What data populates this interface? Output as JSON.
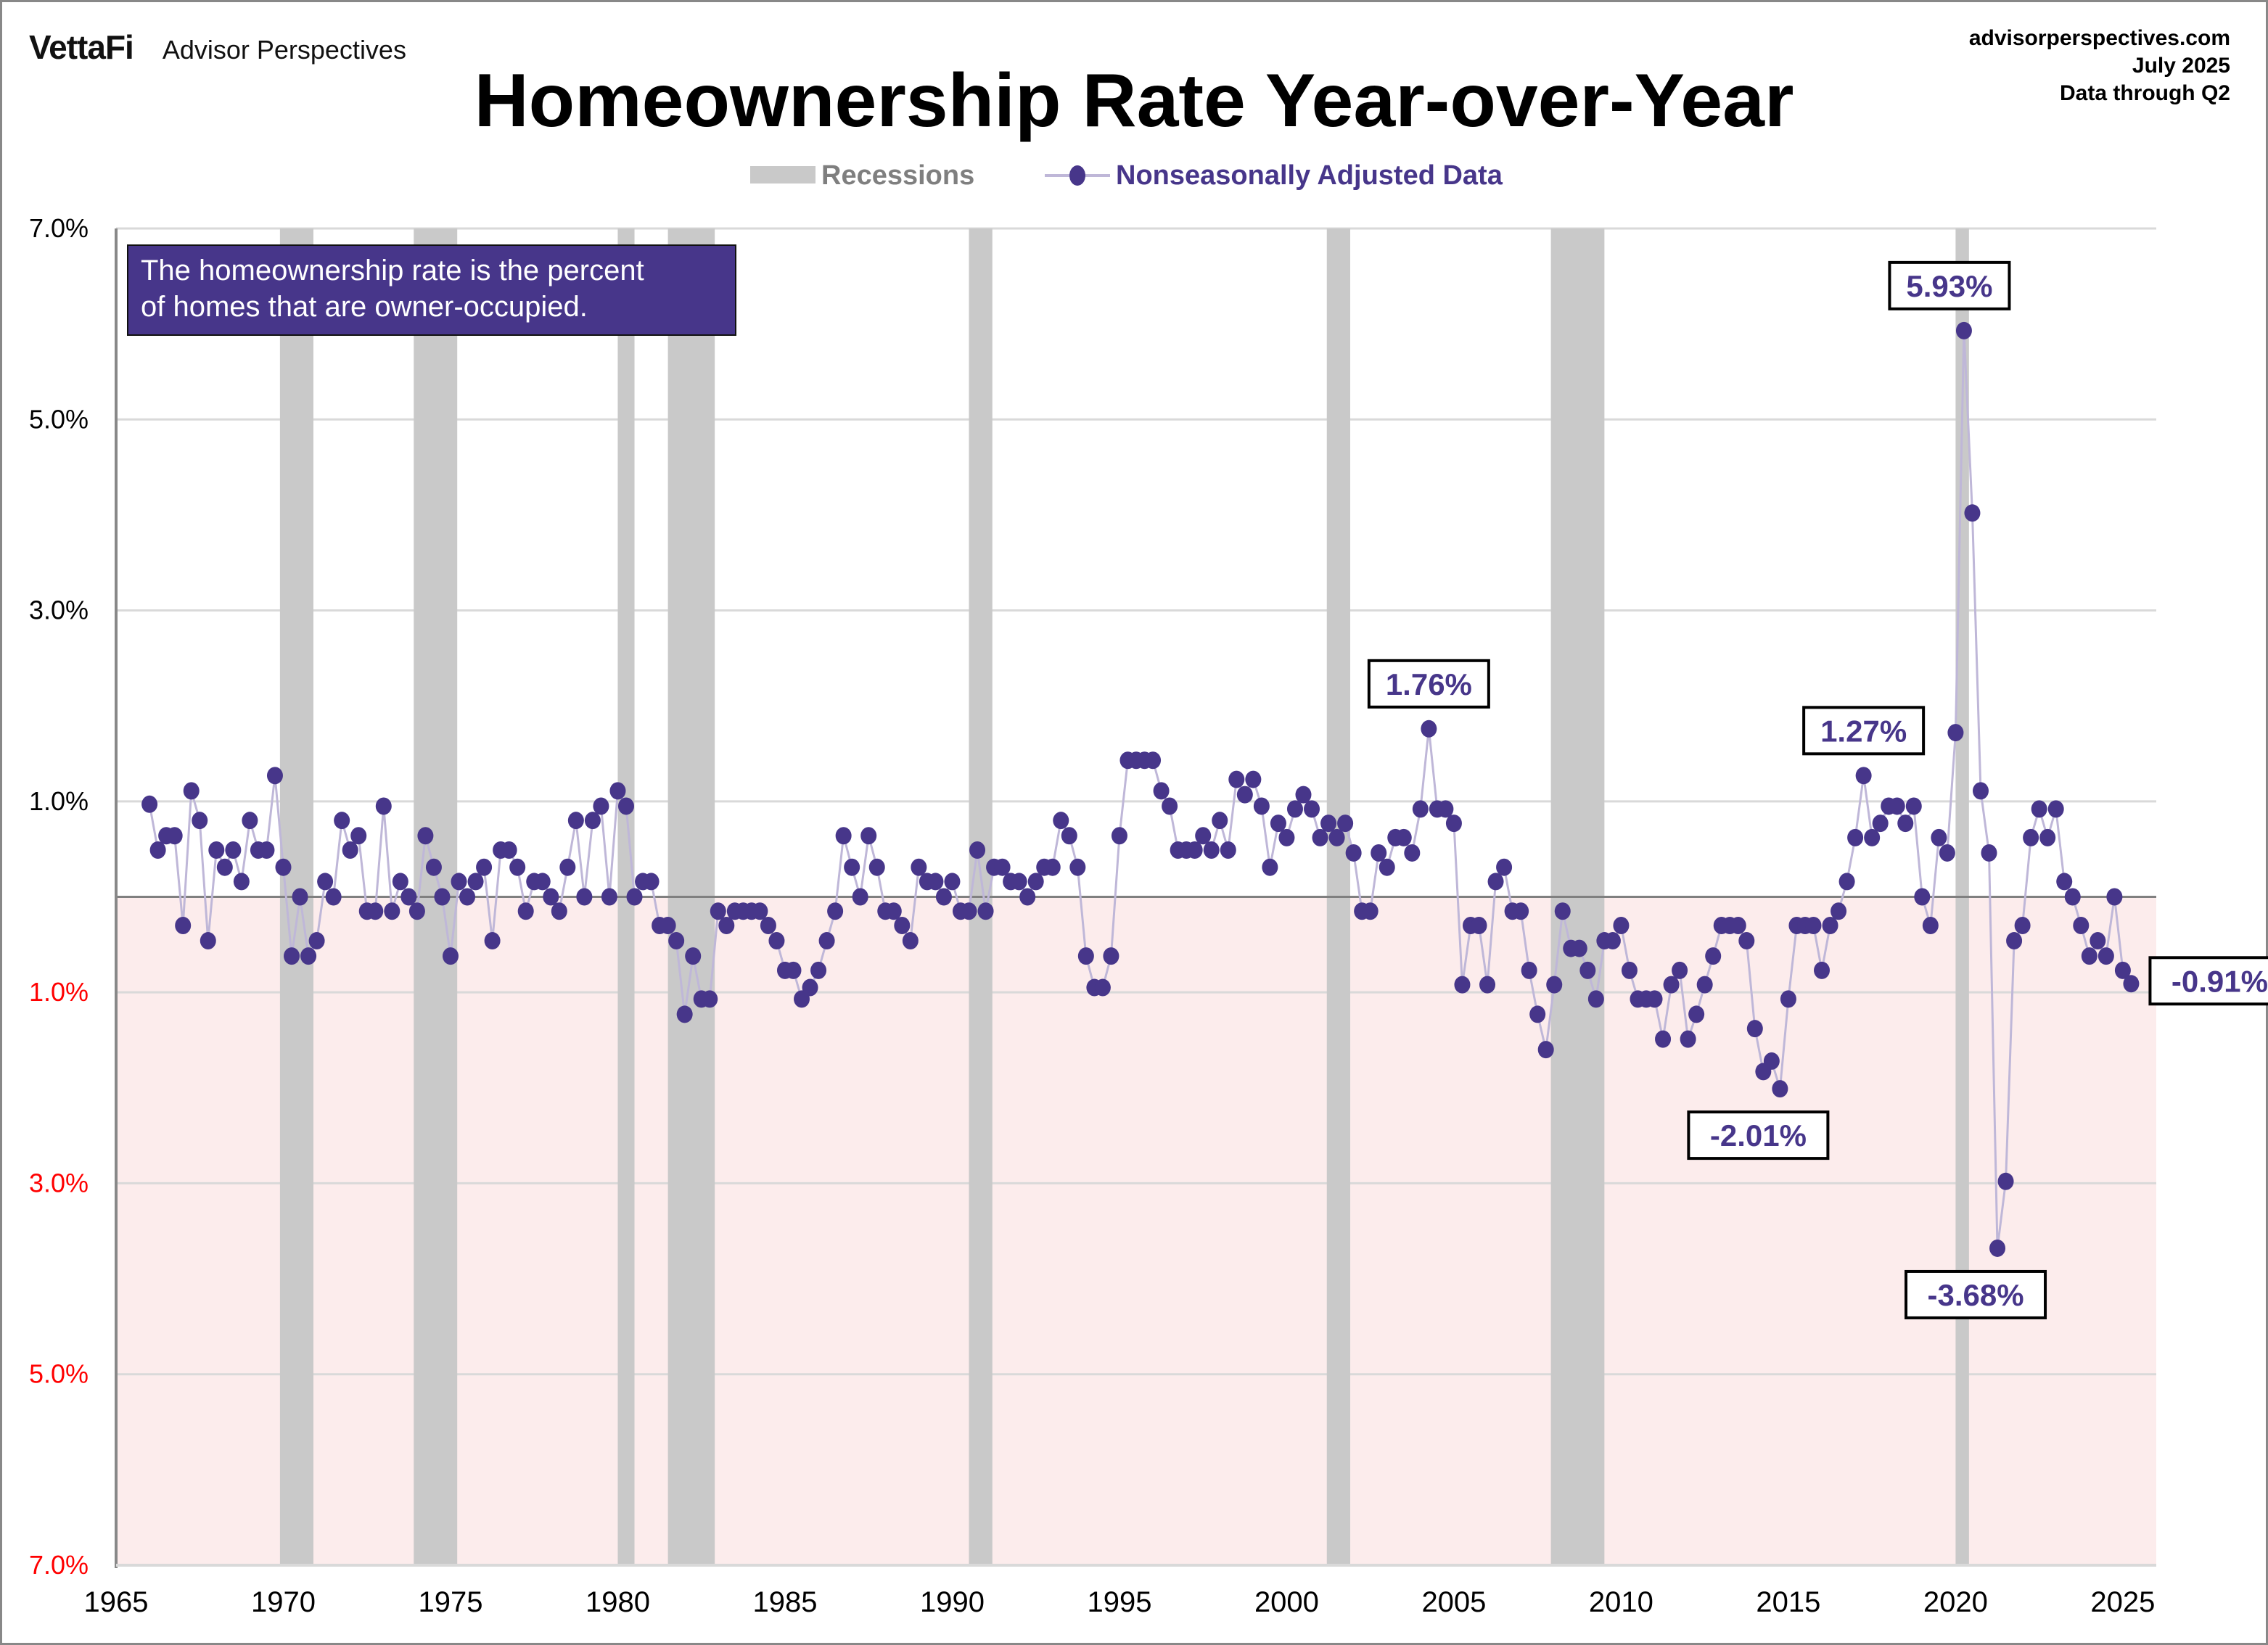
{
  "header": {
    "logo": "VettaFi",
    "brand_sub": "Advisor Perspectives",
    "site": "advisorperspectives.com",
    "date": "July 2025",
    "data_through": "Data through  Q2"
  },
  "colors": {
    "series": "#47368a",
    "line": "#bfb7d8",
    "recession": "#c9c9c9",
    "negative_band": "#fcecec",
    "negative_tick": "#ff0000",
    "grid": "#d9d9d9",
    "zero_line": "#808080"
  },
  "chart_data": {
    "type": "line",
    "title": "Homeownership Rate Year-over-Year",
    "xlabel": "",
    "ylabel": "",
    "legend": {
      "placement": "top-center",
      "items": [
        {
          "label": "Recessions",
          "kind": "band"
        },
        {
          "label": "Nonseasonally Adjusted Data",
          "kind": "line-marker"
        }
      ]
    },
    "note": "The homeownership rate is the percent of homes that are owner-occupied.",
    "note_lines": [
      "The homeownership rate is the percent",
      "of homes that are owner-occupied."
    ],
    "xlim": [
      1965,
      2026
    ],
    "ylim": [
      -7,
      7
    ],
    "x_ticks": [
      "1965",
      "1970",
      "1975",
      "1980",
      "1985",
      "1990",
      "1995",
      "2000",
      "2005",
      "2010",
      "2015",
      "2020",
      "2025"
    ],
    "y_ticks": [
      {
        "value": 7,
        "label": "7.0%",
        "negative": false
      },
      {
        "value": 5,
        "label": "5.0%",
        "negative": false
      },
      {
        "value": 3,
        "label": "3.0%",
        "negative": false
      },
      {
        "value": 1,
        "label": "1.0%",
        "negative": false
      },
      {
        "value": -1,
        "label": "1.0%",
        "negative": true
      },
      {
        "value": -3,
        "label": "3.0%",
        "negative": true
      },
      {
        "value": -5,
        "label": "5.0%",
        "negative": true
      },
      {
        "value": -7,
        "label": "7.0%",
        "negative": true
      }
    ],
    "recessions": [
      [
        1969.9,
        1970.9
      ],
      [
        1973.9,
        1975.2
      ],
      [
        1980.0,
        1980.5
      ],
      [
        1981.5,
        1982.9
      ],
      [
        1990.5,
        1991.2
      ],
      [
        2001.2,
        2001.9
      ],
      [
        2007.9,
        2009.5
      ],
      [
        2020.0,
        2020.4
      ]
    ],
    "series": [
      {
        "name": "Nonseasonally Adjusted Data",
        "start": 1966.0,
        "step": 0.25,
        "values": [
          0.97,
          0.49,
          0.64,
          0.64,
          -0.3,
          1.11,
          0.8,
          -0.46,
          0.49,
          0.31,
          0.49,
          0.16,
          0.8,
          0.49,
          0.49,
          1.27,
          0.31,
          -0.62,
          0.0,
          -0.62,
          -0.46,
          0.16,
          0.0,
          0.8,
          0.49,
          0.64,
          -0.15,
          -0.15,
          0.95,
          -0.15,
          0.16,
          0.0,
          -0.15,
          0.64,
          0.31,
          0.0,
          -0.62,
          0.16,
          0.0,
          0.16,
          0.31,
          -0.46,
          0.49,
          0.49,
          0.31,
          -0.15,
          0.16,
          0.16,
          0.0,
          -0.15,
          0.31,
          0.8,
          0.0,
          0.8,
          0.95,
          0.0,
          1.11,
          0.95,
          0.0,
          0.16,
          0.16,
          -0.3,
          -0.3,
          -0.46,
          -1.23,
          -0.62,
          -1.07,
          -1.07,
          -0.15,
          -0.3,
          -0.15,
          -0.15,
          -0.15,
          -0.15,
          -0.3,
          -0.46,
          -0.77,
          -0.77,
          -1.07,
          -0.95,
          -0.77,
          -0.46,
          -0.15,
          0.64,
          0.31,
          0.0,
          0.64,
          0.31,
          -0.15,
          -0.15,
          -0.3,
          -0.46,
          0.31,
          0.16,
          0.16,
          0.0,
          0.16,
          -0.15,
          -0.15,
          0.49,
          -0.15,
          0.31,
          0.31,
          0.16,
          0.16,
          0.0,
          0.16,
          0.31,
          0.31,
          0.8,
          0.64,
          0.31,
          -0.62,
          -0.95,
          -0.95,
          -0.62,
          0.64,
          1.43,
          1.43,
          1.43,
          1.43,
          1.11,
          0.95,
          0.49,
          0.49,
          0.49,
          0.64,
          0.49,
          0.8,
          0.49,
          1.23,
          1.07,
          1.23,
          0.95,
          0.31,
          0.77,
          0.62,
          0.92,
          1.07,
          0.92,
          0.62,
          0.77,
          0.62,
          0.77,
          0.46,
          -0.15,
          -0.15,
          0.46,
          0.31,
          0.62,
          0.62,
          0.46,
          0.92,
          1.76,
          0.92,
          0.92,
          0.77,
          -0.92,
          -0.3,
          -0.3,
          -0.92,
          0.16,
          0.31,
          -0.15,
          -0.15,
          -0.77,
          -1.23,
          -1.6,
          -0.92,
          -0.15,
          -0.54,
          -0.54,
          -0.77,
          -1.07,
          -0.46,
          -0.46,
          -0.3,
          -0.77,
          -1.07,
          -1.07,
          -1.07,
          -1.49,
          -0.92,
          -0.77,
          -1.49,
          -1.23,
          -0.92,
          -0.62,
          -0.3,
          -0.3,
          -0.3,
          -0.46,
          -1.38,
          -1.83,
          -1.72,
          -2.01,
          -1.07,
          -0.3,
          -0.3,
          -0.3,
          -0.77,
          -0.3,
          -0.15,
          0.16,
          0.62,
          1.27,
          0.62,
          0.77,
          0.95,
          0.95,
          0.77,
          0.95,
          0.0,
          -0.3,
          0.62,
          0.46,
          1.72,
          5.93,
          4.02,
          1.11,
          0.46,
          -3.68,
          -2.98,
          -0.46,
          -0.3,
          0.62,
          0.92,
          0.62,
          0.92,
          0.16,
          0.0,
          -0.3,
          -0.62,
          -0.46,
          -0.62,
          0.0,
          -0.77,
          -0.91
        ]
      }
    ],
    "annotations": [
      {
        "label": "5.93%",
        "x": 2020.25,
        "y": 5.93,
        "pos": "above"
      },
      {
        "label": "1.76%",
        "x": 2004.25,
        "y": 1.76,
        "pos": "above"
      },
      {
        "label": "1.27%",
        "x": 2017.25,
        "y": 1.27,
        "pos": "above"
      },
      {
        "label": "-2.01%",
        "x": 2014.75,
        "y": -2.01,
        "pos": "below"
      },
      {
        "label": "-3.68%",
        "x": 2021.25,
        "y": -3.68,
        "pos": "below"
      },
      {
        "label": "-0.91%",
        "x": 2025.25,
        "y": -0.91,
        "pos": "right"
      }
    ]
  }
}
